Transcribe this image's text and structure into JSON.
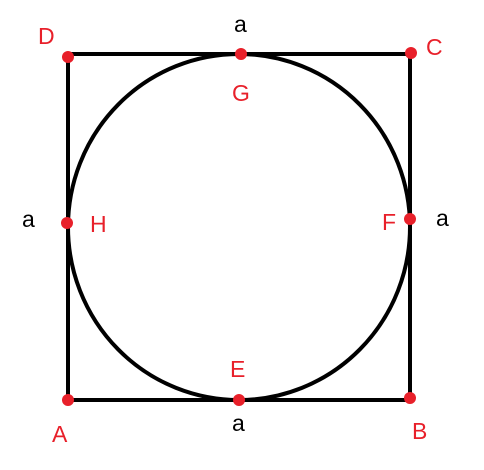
{
  "figure": {
    "shape": "square with inscribed circle",
    "colors": {
      "stroke": "#000000",
      "point": "#e8202a",
      "point_label": "#e8202a",
      "side_label": "#000000",
      "background": "#ffffff"
    }
  },
  "vertices": [
    {
      "id": "A",
      "label": "A"
    },
    {
      "id": "B",
      "label": "B"
    },
    {
      "id": "C",
      "label": "C"
    },
    {
      "id": "D",
      "label": "D"
    }
  ],
  "tangent_points": [
    {
      "id": "E",
      "label": "E",
      "side": "AB"
    },
    {
      "id": "F",
      "label": "F",
      "side": "BC"
    },
    {
      "id": "G",
      "label": "G",
      "side": "CD"
    },
    {
      "id": "H",
      "label": "H",
      "side": "DA"
    }
  ],
  "side_labels": {
    "top": "a",
    "bottom": "a",
    "left": "a",
    "right": "a"
  }
}
